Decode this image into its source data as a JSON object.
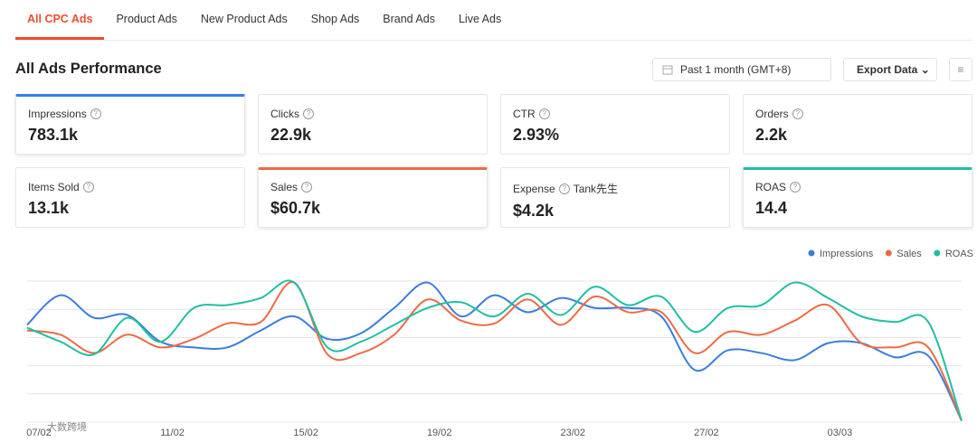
{
  "tabs": [
    "All CPC Ads",
    "Product Ads",
    "New Product Ads",
    "Shop Ads",
    "Brand Ads",
    "Live Ads"
  ],
  "active_tab": 0,
  "title": "All Ads Performance",
  "date_picker": "Past 1 month (GMT+8)",
  "export_button": "Export Data",
  "cards": [
    {
      "label": "Impressions",
      "value": "783.1k",
      "accent": "#3b7ddd"
    },
    {
      "label": "Clicks",
      "value": "22.9k"
    },
    {
      "label": "CTR",
      "value": "2.93%"
    },
    {
      "label": "Orders",
      "value": "2.2k"
    },
    {
      "label": "Items Sold",
      "value": "13.1k"
    },
    {
      "label": "Sales",
      "value": "$60.7k",
      "accent": "#ee6a45"
    },
    {
      "label": "Expense",
      "value": "$4.2k",
      "note": "Tank先生"
    },
    {
      "label": "ROAS",
      "value": "14.4",
      "accent": "#1fbfa3"
    }
  ],
  "watermark": "大数跨境",
  "chart_data": {
    "type": "line",
    "categories": [
      "07/02",
      null,
      null,
      null,
      "11/02",
      null,
      null,
      null,
      "15/02",
      null,
      null,
      null,
      "19/02",
      null,
      null,
      null,
      "23/02",
      null,
      null,
      null,
      "27/02",
      null,
      null,
      null,
      "03/03",
      null,
      null,
      null,
      null
    ],
    "series": [
      {
        "name": "Impressions",
        "color": "#3b7ddd",
        "values": [
          69,
          90,
          74,
          76,
          57,
          53,
          53,
          65,
          75,
          59,
          63,
          81,
          99,
          75,
          90,
          78,
          88,
          81,
          81,
          75,
          37,
          51,
          49,
          44,
          56,
          56,
          46,
          47,
          1
        ]
      },
      {
        "name": "Sales",
        "color": "#ee6a45",
        "values": [
          65,
          62,
          49,
          62,
          53,
          59,
          70,
          71,
          99,
          48,
          49,
          62,
          87,
          72,
          70,
          87,
          69,
          89,
          78,
          78,
          49,
          64,
          62,
          72,
          83,
          56,
          53,
          53,
          1
        ]
      },
      {
        "name": "ROAS",
        "color": "#1fbfa3",
        "values": [
          67,
          57,
          48,
          74,
          57,
          81,
          83,
          88,
          99,
          53,
          57,
          69,
          81,
          85,
          75,
          91,
          76,
          96,
          83,
          89,
          64,
          81,
          83,
          99,
          88,
          75,
          71,
          71,
          1
        ]
      }
    ],
    "ylim": [
      0,
      100
    ],
    "gridlines": [
      0,
      20,
      40,
      60,
      80,
      100
    ],
    "legend": "top-right"
  }
}
